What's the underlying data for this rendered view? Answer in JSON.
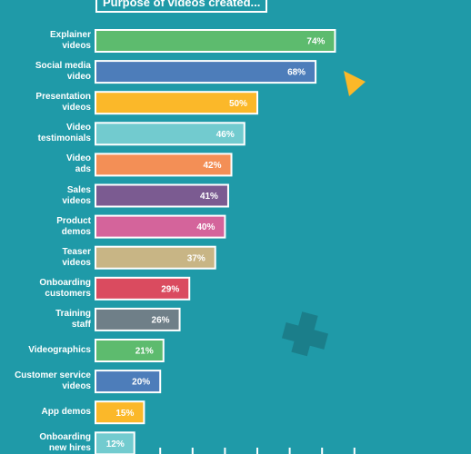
{
  "chart_data": {
    "type": "bar",
    "orientation": "horizontal",
    "title": "Purpose of videos created...",
    "categories": [
      "Explainer\nvideos",
      "Social media\nvideo",
      "Presentation\nvideos",
      "Video\ntestimonials",
      "Video\nads",
      "Sales\nvideos",
      "Product\ndemos",
      "Teaser\nvideos",
      "Onboarding\ncustomers",
      "Training\nstaff",
      "Videographics",
      "Customer service\nvideos",
      "App demos",
      "Onboarding\nnew hires"
    ],
    "values": [
      74,
      68,
      50,
      46,
      42,
      41,
      40,
      37,
      29,
      26,
      21,
      20,
      15,
      12
    ],
    "value_labels": [
      "74%",
      "68%",
      "50%",
      "46%",
      "42%",
      "41%",
      "40%",
      "37%",
      "29%",
      "26%",
      "21%",
      "20%",
      "15%",
      "12%"
    ],
    "colors": [
      "#5dbb6e",
      "#4d7dba",
      "#fbb829",
      "#72cbcf",
      "#f38f56",
      "#7b5b91",
      "#d4649b",
      "#c8b585",
      "#da4b5f",
      "#6f7f88",
      "#5dbb6e",
      "#4d7dba",
      "#fbb829",
      "#72cbcf"
    ],
    "xlim": [
      0,
      100
    ],
    "xticks": [
      20,
      30,
      40,
      50,
      60,
      70,
      80
    ]
  }
}
